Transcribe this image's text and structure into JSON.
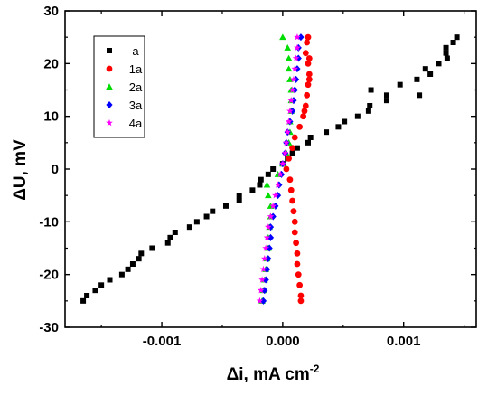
{
  "chart_data": {
    "type": "scatter",
    "xlabel": "Δi, mA cm",
    "xlabel_sup": "-2",
    "ylabel": "ΔU, mV",
    "xlim": [
      -0.0018,
      0.0016
    ],
    "ylim": [
      -30,
      30
    ],
    "x_ticks": [
      -0.001,
      0.0,
      0.001
    ],
    "x_tick_labels": [
      "-0.001",
      "0.000",
      "0.001"
    ],
    "y_ticks": [
      -30,
      -20,
      -10,
      0,
      10,
      20,
      30
    ],
    "y_tick_labels": [
      "-30",
      "-20",
      "-10",
      "0",
      "10",
      "20",
      "30"
    ],
    "grid": false,
    "legend_position": "top-left",
    "series": [
      {
        "name": "a",
        "marker": "square",
        "color": "#000000",
        "points": [
          [
            -0.00165,
            -25
          ],
          [
            -0.00162,
            -24
          ],
          [
            -0.00155,
            -23
          ],
          [
            -0.0015,
            -22
          ],
          [
            -0.00143,
            -21
          ],
          [
            -0.00133,
            -20
          ],
          [
            -0.00128,
            -19
          ],
          [
            -0.00124,
            -18
          ],
          [
            -0.00119,
            -17
          ],
          [
            -0.00117,
            -16
          ],
          [
            -0.00108,
            -15
          ],
          [
            -0.00095,
            -14
          ],
          [
            -0.00093,
            -13
          ],
          [
            -0.00089,
            -12
          ],
          [
            -0.00077,
            -11
          ],
          [
            -0.00071,
            -10
          ],
          [
            -0.00063,
            -9
          ],
          [
            -0.00058,
            -8
          ],
          [
            -0.00047,
            -7
          ],
          [
            -0.00036,
            -6
          ],
          [
            -0.00036,
            -5
          ],
          [
            -0.00025,
            -4
          ],
          [
            -0.00019,
            -3
          ],
          [
            -0.00018,
            -2
          ],
          [
            -0.00012,
            -1
          ],
          [
            -8e-05,
            0
          ],
          [
            0.0,
            1
          ],
          [
            4e-05,
            2
          ],
          [
            8e-05,
            3
          ],
          [
            0.00012,
            4
          ],
          [
            0.00021,
            5
          ],
          [
            0.00023,
            6
          ],
          [
            0.00036,
            7
          ],
          [
            0.00046,
            8
          ],
          [
            0.00051,
            9
          ],
          [
            0.00062,
            10
          ],
          [
            0.00071,
            11
          ],
          [
            0.00072,
            12
          ],
          [
            0.00086,
            13
          ],
          [
            0.00086,
            14
          ],
          [
            0.00073,
            15
          ],
          [
            0.00097,
            16
          ],
          [
            0.00111,
            17
          ],
          [
            0.00122,
            18
          ],
          [
            0.00118,
            19
          ],
          [
            0.00129,
            20
          ],
          [
            0.00136,
            21
          ],
          [
            0.00135,
            22
          ],
          [
            0.00135,
            23
          ],
          [
            0.00141,
            24
          ],
          [
            0.00144,
            25
          ],
          [
            0.00113,
            14
          ]
        ]
      },
      {
        "name": "1a",
        "marker": "circle",
        "color": "#ff0000",
        "points": [
          [
            0.00015,
            -25
          ],
          [
            0.00015,
            -24
          ],
          [
            0.00014,
            -22
          ],
          [
            0.00013,
            -20
          ],
          [
            0.00012,
            -18
          ],
          [
            0.00012,
            -16
          ],
          [
            0.00011,
            -14
          ],
          [
            0.0001,
            -12
          ],
          [
            0.0001,
            -10
          ],
          [
            9e-05,
            -8
          ],
          [
            8e-05,
            -6
          ],
          [
            7e-05,
            -4
          ],
          [
            6e-05,
            -2
          ],
          [
            3e-05,
            0
          ],
          [
            5e-05,
            2
          ],
          [
            8e-05,
            4
          ],
          [
            0.0001,
            6
          ],
          [
            0.00014,
            8
          ],
          [
            0.00017,
            10
          ],
          [
            0.00019,
            12
          ],
          [
            0.0002,
            14
          ],
          [
            0.00021,
            16
          ],
          [
            0.00022,
            18
          ],
          [
            0.00021,
            20
          ],
          [
            0.00019,
            22
          ],
          [
            0.0002,
            24
          ],
          [
            0.00021,
            25
          ],
          [
            0.00018,
            11
          ],
          [
            0.00022,
            17
          ],
          [
            0.00022,
            21
          ]
        ]
      },
      {
        "name": "2a",
        "marker": "triangle",
        "color": "#00dd00",
        "points": [
          [
            -0.00017,
            -25
          ],
          [
            -0.00016,
            -23
          ],
          [
            -0.00015,
            -21
          ],
          [
            -0.00014,
            -19
          ],
          [
            -0.00013,
            -17
          ],
          [
            -0.00012,
            -15
          ],
          [
            -0.00012,
            -13
          ],
          [
            -0.00011,
            -11
          ],
          [
            -0.0001,
            -9
          ],
          [
            -0.0001,
            -7
          ],
          [
            -0.00012,
            -5
          ],
          [
            -0.00013,
            -3
          ],
          [
            -4e-05,
            -1
          ],
          [
            0.0,
            1
          ],
          [
            3e-05,
            3
          ],
          [
            5e-05,
            5
          ],
          [
            6e-05,
            7
          ],
          [
            6e-05,
            9
          ],
          [
            7e-05,
            11
          ],
          [
            7e-05,
            13
          ],
          [
            7e-05,
            15
          ],
          [
            6e-05,
            17
          ],
          [
            5e-05,
            19
          ],
          [
            5e-05,
            21
          ],
          [
            4e-05,
            23
          ],
          [
            0.0,
            25
          ]
        ]
      },
      {
        "name": "3a",
        "marker": "diamond",
        "color": "#0000ff",
        "points": [
          [
            -0.00016,
            -25
          ],
          [
            -0.00015,
            -23
          ],
          [
            -0.00014,
            -21
          ],
          [
            -0.00013,
            -19
          ],
          [
            -0.00012,
            -17
          ],
          [
            -0.00011,
            -15
          ],
          [
            -0.0001,
            -13
          ],
          [
            -0.0001,
            -11
          ],
          [
            -8e-05,
            -9
          ],
          [
            -6e-05,
            -7
          ],
          [
            -4e-05,
            -5
          ],
          [
            -3e-05,
            -3
          ],
          [
            -1e-05,
            -1
          ],
          [
            0.0,
            1
          ],
          [
            2e-05,
            3
          ],
          [
            3e-05,
            5
          ],
          [
            4e-05,
            7
          ],
          [
            6e-05,
            9
          ],
          [
            8e-05,
            11
          ],
          [
            9e-05,
            13
          ],
          [
            0.0001,
            15
          ],
          [
            0.00011,
            17
          ],
          [
            0.00012,
            19
          ],
          [
            0.00013,
            21
          ],
          [
            0.00013,
            23
          ],
          [
            0.00015,
            25
          ]
        ]
      },
      {
        "name": "4a",
        "marker": "star",
        "color": "#ff00ff",
        "points": [
          [
            -0.00019,
            -25
          ],
          [
            -0.00018,
            -23
          ],
          [
            -0.00017,
            -21
          ],
          [
            -0.00016,
            -19
          ],
          [
            -0.00015,
            -17
          ],
          [
            -0.00014,
            -15
          ],
          [
            -0.00013,
            -13
          ],
          [
            -0.00012,
            -11
          ],
          [
            -0.0001,
            -9
          ],
          [
            -8e-05,
            -7
          ],
          [
            -6e-05,
            -5
          ],
          [
            -4e-05,
            -3
          ],
          [
            -2e-05,
            -1
          ],
          [
            0.0,
            1
          ],
          [
            2e-05,
            3
          ],
          [
            3e-05,
            5
          ],
          [
            4e-05,
            7
          ],
          [
            5e-05,
            9
          ],
          [
            6e-05,
            11
          ],
          [
            7e-05,
            13
          ],
          [
            8e-05,
            15
          ],
          [
            9e-05,
            17
          ],
          [
            0.0001,
            19
          ],
          [
            0.00011,
            21
          ],
          [
            0.00012,
            23
          ],
          [
            0.00012,
            25
          ]
        ]
      }
    ]
  }
}
